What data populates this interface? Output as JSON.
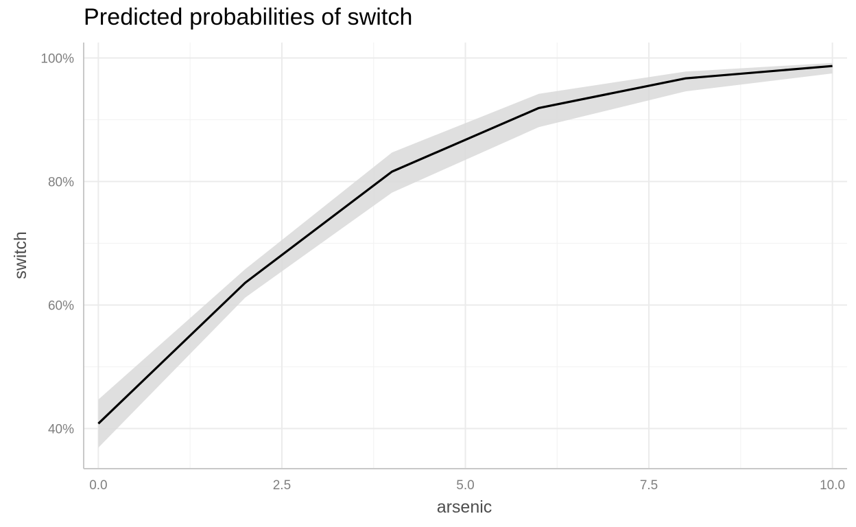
{
  "chart_data": {
    "type": "line",
    "title": "Predicted probabilities of switch",
    "xlabel": "arsenic",
    "ylabel": "switch",
    "xlim": [
      -0.2,
      10.2
    ],
    "ylim": [
      0.335,
      1.025
    ],
    "x_ticks": [
      {
        "value": 0,
        "label": "0.0"
      },
      {
        "value": 2.5,
        "label": "2.5"
      },
      {
        "value": 5,
        "label": "5.0"
      },
      {
        "value": 7.5,
        "label": "7.5"
      },
      {
        "value": 10,
        "label": "10.0"
      }
    ],
    "x_minor_ticks": [
      1.25,
      3.75,
      6.25,
      8.75
    ],
    "y_ticks": [
      {
        "value": 0.4,
        "label": "40%"
      },
      {
        "value": 0.6,
        "label": "60%"
      },
      {
        "value": 0.8,
        "label": "80%"
      },
      {
        "value": 1.0,
        "label": "100%"
      }
    ],
    "y_minor_ticks": [
      0.5,
      0.7,
      0.9
    ],
    "grid": true,
    "series": [
      {
        "x": [
          0,
          2,
          4,
          6,
          8,
          10
        ],
        "y": [
          0.408,
          0.636,
          0.816,
          0.919,
          0.967,
          0.987
        ],
        "lower": [
          0.369,
          0.612,
          0.782,
          0.888,
          0.946,
          0.975
        ],
        "upper": [
          0.447,
          0.658,
          0.847,
          0.942,
          0.978,
          0.992
        ]
      }
    ],
    "colors": {
      "line": "#000000",
      "ribbon": "#d9d9d9",
      "grid_major": "#ebebeb",
      "grid_minor": "#f3f3f3",
      "axis": "#c8c8c8"
    }
  }
}
